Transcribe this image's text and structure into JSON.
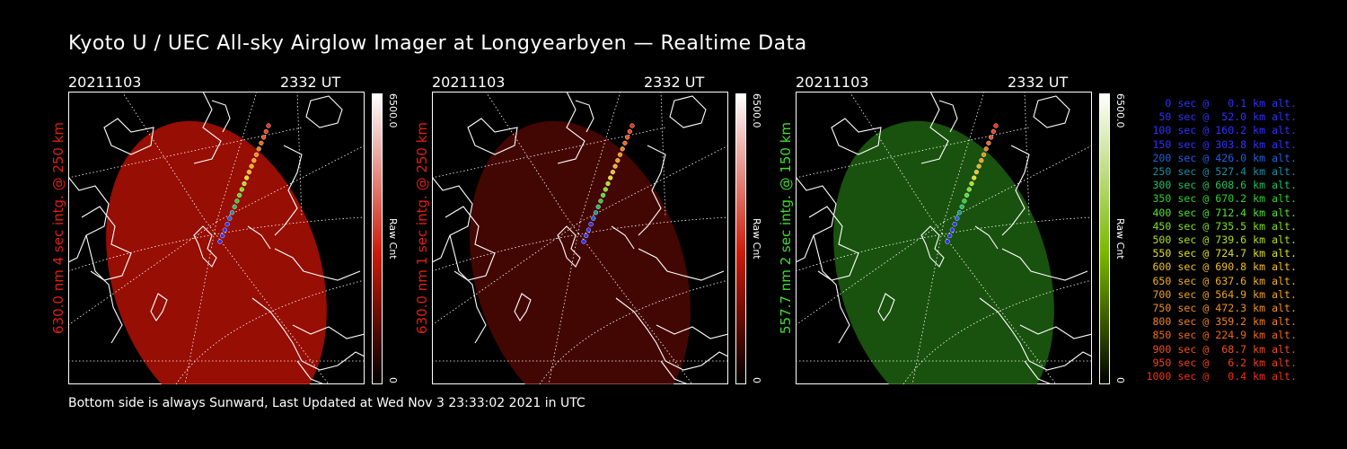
{
  "title": "Kyoto U / UEC All-sky Airglow Imager at Longyearbyen — Realtime Data",
  "footer": "Bottom side is always Sunward, Last Updated at Wed Nov  3 23:33:02 2021 in UTC",
  "panels": [
    {
      "date": "20211103",
      "time": "2332 UT",
      "ylabel": "630.0 nm 4 sec intg. @ 250 km",
      "label_color": "#e02010",
      "fill_color": "#b01005",
      "fill_opacity": 0.85,
      "cbar_color": "#cc1a08",
      "cbar_max": "6500.0",
      "cbar_min": "0",
      "cbar_unit": "Raw Cnt"
    },
    {
      "date": "20211103",
      "time": "2332 UT",
      "ylabel": "630.0 nm 1 sec intg. @ 250 km",
      "label_color": "#e02010",
      "fill_color": "#5a0a04",
      "fill_opacity": 0.75,
      "cbar_color": "#cc1a08",
      "cbar_max": "6500.0",
      "cbar_min": "0",
      "cbar_unit": "Raw Cnt"
    },
    {
      "date": "20211103",
      "time": "2332 UT",
      "ylabel": "557.7 nm 2 sec intg. @ 150 km",
      "label_color": "#40dd30",
      "fill_color": "#1d6010",
      "fill_opacity": 0.85,
      "cbar_color": "#7ab800",
      "cbar_max": "6500.0",
      "cbar_min": "0",
      "cbar_unit": "Raw Cnt"
    }
  ],
  "legend": [
    {
      "text": "0 sec @   0.1 km alt.",
      "color": "#3030ff"
    },
    {
      "text": "50 sec @  52.0 km alt.",
      "color": "#3030ff"
    },
    {
      "text": "100 sec @ 160.2 km alt.",
      "color": "#3030ff"
    },
    {
      "text": "150 sec @ 303.8 km alt.",
      "color": "#3030ff"
    },
    {
      "text": "200 sec @ 426.0 km alt.",
      "color": "#2060e0"
    },
    {
      "text": "250 sec @ 527.4 km alt.",
      "color": "#1890a0"
    },
    {
      "text": "300 sec @ 608.6 km alt.",
      "color": "#20c060"
    },
    {
      "text": "350 sec @ 670.2 km alt.",
      "color": "#30d030"
    },
    {
      "text": "400 sec @ 712.4 km alt.",
      "color": "#50e030"
    },
    {
      "text": "450 sec @ 735.5 km alt.",
      "color": "#80e020"
    },
    {
      "text": "500 sec @ 739.6 km alt.",
      "color": "#b0e020"
    },
    {
      "text": "550 sec @ 724.7 km alt.",
      "color": "#e0e020"
    },
    {
      "text": "600 sec @ 690.8 km alt.",
      "color": "#f0c020"
    },
    {
      "text": "650 sec @ 637.6 km alt.",
      "color": "#f0b020"
    },
    {
      "text": "700 sec @ 564.9 km alt.",
      "color": "#f0a020"
    },
    {
      "text": "750 sec @ 472.3 km alt.",
      "color": "#f09020"
    },
    {
      "text": "800 sec @ 359.2 km alt.",
      "color": "#f08020"
    },
    {
      "text": "850 sec @ 224.9 km alt.",
      "color": "#f06818"
    },
    {
      "text": "900 sec @  68.7 km alt.",
      "color": "#f05018"
    },
    {
      "text": "950 sec @   6.2 km alt.",
      "color": "#f04018"
    },
    {
      "text": "1000 sec @   0.4 km alt.",
      "color": "#f03018"
    }
  ]
}
